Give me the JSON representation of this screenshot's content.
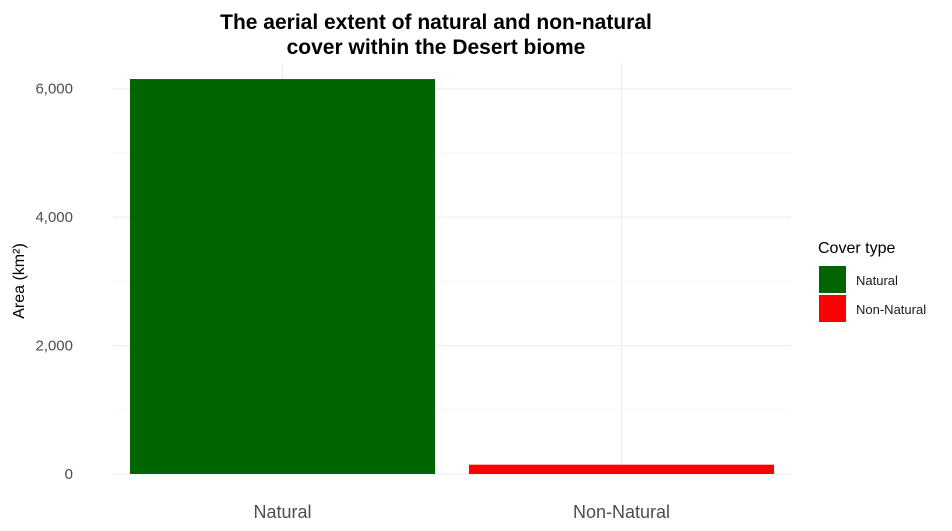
{
  "chart_data": {
    "type": "bar",
    "title": [
      "The aerial extent of natural and non-natural",
      "cover within the Desert biome"
    ],
    "xlabel": "",
    "ylabel": "Area (km²)",
    "categories": [
      "Natural",
      "Non-Natural"
    ],
    "values": [
      6150,
      145
    ],
    "colors": [
      "#006400",
      "#ff0000"
    ],
    "ylim": [
      0,
      6400
    ],
    "yticks": [
      0,
      2000,
      4000,
      6000
    ],
    "ytick_labels": [
      "0",
      "2,000",
      "4,000",
      "6,000"
    ],
    "grid": true,
    "legend": {
      "title": "Cover type",
      "placement": "right",
      "items": [
        {
          "label": "Natural",
          "color": "#006400"
        },
        {
          "label": "Non-Natural",
          "color": "#ff0000"
        }
      ]
    }
  }
}
